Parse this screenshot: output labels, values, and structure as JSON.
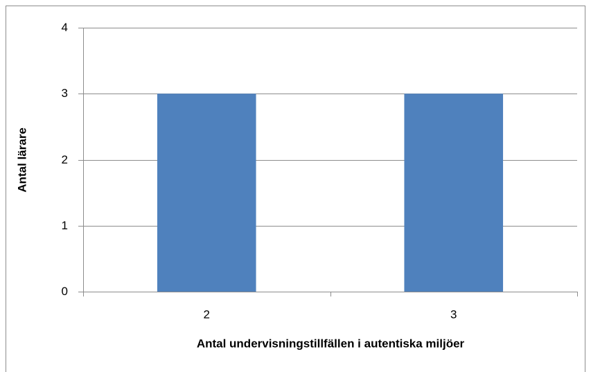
{
  "chart_data": {
    "type": "bar",
    "x_label": "Antal undervisningstillfällen i autentiska miljöer",
    "y_label": "Antal lärare",
    "categories": [
      "2",
      "3"
    ],
    "values": [
      3,
      3
    ],
    "color": "#4f81bd",
    "ylim": [
      0,
      4
    ],
    "yticks": [
      0,
      1,
      2,
      3,
      4
    ],
    "grid": true
  }
}
